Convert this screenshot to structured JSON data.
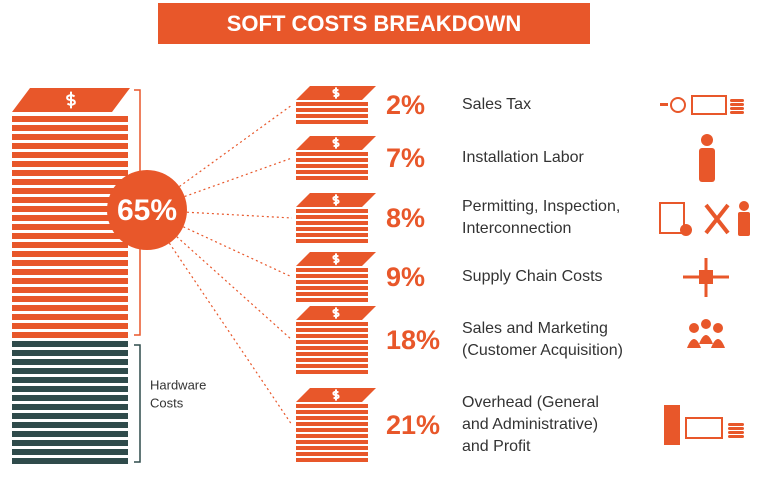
{
  "title": "SOFT COSTS BREAKDOWN",
  "soft_total": {
    "value": 65,
    "label": "65%"
  },
  "hardware_label": [
    "Hardware",
    "Costs"
  ],
  "items": [
    {
      "value": 2,
      "label": "2%",
      "name": [
        "Sales Tax"
      ]
    },
    {
      "value": 7,
      "label": "7%",
      "name": [
        "Installation Labor"
      ]
    },
    {
      "value": 8,
      "label": "8%",
      "name": [
        "Permitting, Inspection,",
        "Interconnection"
      ]
    },
    {
      "value": 9,
      "label": "9%",
      "name": [
        "Supply Chain Costs"
      ]
    },
    {
      "value": 18,
      "label": "18%",
      "name": [
        "Sales and Marketing",
        "(Customer Acquisition)"
      ]
    },
    {
      "value": 21,
      "label": "21%",
      "name": [
        "Overhead (General",
        "and Administrative)",
        "and Profit"
      ]
    }
  ]
}
